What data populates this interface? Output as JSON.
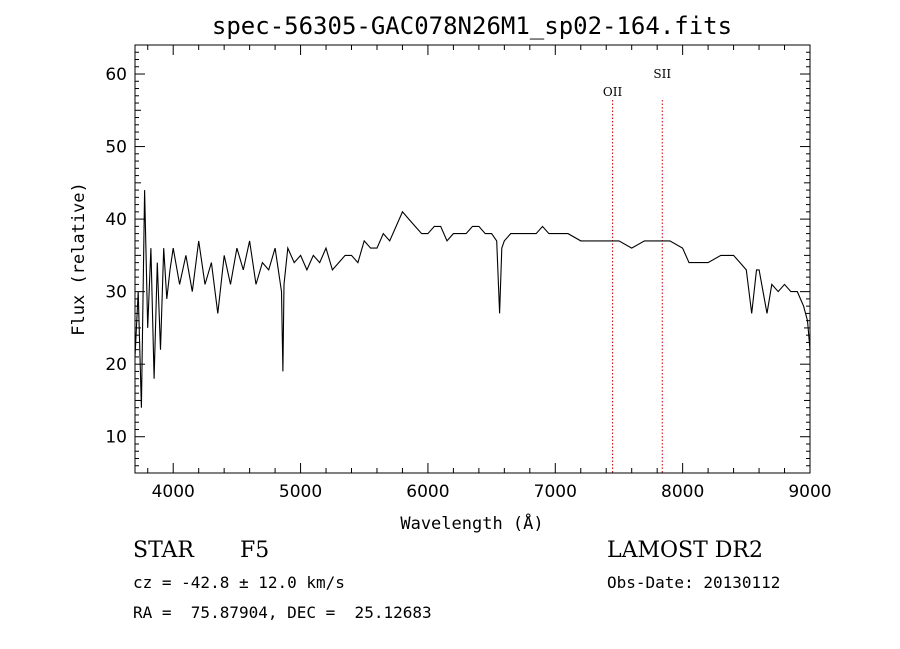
{
  "chart_data": {
    "type": "line",
    "title": "spec-56305-GAC078N26M1_sp02-164.fits",
    "xlabel": "Wavelength (Å)",
    "ylabel": "Flux (relative)",
    "xlim": [
      3700,
      9000
    ],
    "ylim": [
      5,
      64
    ],
    "x_ticks": [
      4000,
      5000,
      6000,
      7000,
      8000,
      9000
    ],
    "y_ticks": [
      10,
      20,
      30,
      40,
      50,
      60
    ],
    "grid": false,
    "line_color": "#000000",
    "marker_color": "#cc0000",
    "spectral_lines": [
      {
        "label": "OII",
        "wavelength": 7450
      },
      {
        "label": "SII",
        "wavelength": 7840
      }
    ],
    "series": [
      {
        "x": [
          3700,
          3725,
          3750,
          3775,
          3800,
          3825,
          3850,
          3875,
          3900,
          3925,
          3950,
          3975,
          4000,
          4050,
          4100,
          4150,
          4200,
          4250,
          4300,
          4350,
          4400,
          4450,
          4500,
          4550,
          4600,
          4650,
          4700,
          4750,
          4800,
          4850,
          4861,
          4870,
          4900,
          4950,
          5000,
          5050,
          5100,
          5150,
          5200,
          5250,
          5300,
          5350,
          5400,
          5450,
          5500,
          5550,
          5600,
          5650,
          5700,
          5750,
          5800,
          5850,
          5900,
          5950,
          6000,
          6050,
          6100,
          6150,
          6200,
          6250,
          6300,
          6350,
          6400,
          6450,
          6500,
          6540,
          6563,
          6580,
          6600,
          6650,
          6700,
          6750,
          6800,
          6850,
          6900,
          6950,
          7000,
          7100,
          7200,
          7300,
          7400,
          7500,
          7600,
          7700,
          7800,
          7900,
          8000,
          8050,
          8100,
          8200,
          8300,
          8400,
          8450,
          8500,
          8542,
          8580,
          8600,
          8662,
          8700,
          8750,
          8800,
          8850,
          8900,
          8950,
          8980,
          9000
        ],
        "y": [
          21,
          30,
          14,
          44,
          25,
          36,
          18,
          34,
          22,
          36,
          29,
          33,
          36,
          31,
          35,
          30,
          37,
          31,
          34,
          27,
          35,
          31,
          36,
          33,
          37,
          31,
          34,
          33,
          36,
          30,
          19,
          31,
          36,
          34,
          35,
          33,
          35,
          34,
          36,
          33,
          34,
          35,
          35,
          34,
          37,
          36,
          36,
          38,
          37,
          39,
          41,
          40,
          39,
          38,
          38,
          39,
          39,
          37,
          38,
          38,
          38,
          39,
          39,
          38,
          38,
          37,
          27,
          36,
          37,
          38,
          38,
          38,
          38,
          38,
          39,
          38,
          38,
          38,
          37,
          37,
          37,
          37,
          36,
          37,
          37,
          37,
          36,
          34,
          34,
          34,
          35,
          35,
          34,
          33,
          27,
          33,
          33,
          27,
          31,
          30,
          31,
          30,
          30,
          28,
          26,
          22
        ]
      }
    ]
  },
  "info": {
    "object_class": "STAR",
    "subclass": "F5",
    "survey": "LAMOST DR2",
    "redshift": "cz = -42.8 ± 12.0 km/s",
    "obs_date": "Obs-Date: 20130112",
    "coordinates": "RA =  75.87904, DEC =  25.12683"
  }
}
